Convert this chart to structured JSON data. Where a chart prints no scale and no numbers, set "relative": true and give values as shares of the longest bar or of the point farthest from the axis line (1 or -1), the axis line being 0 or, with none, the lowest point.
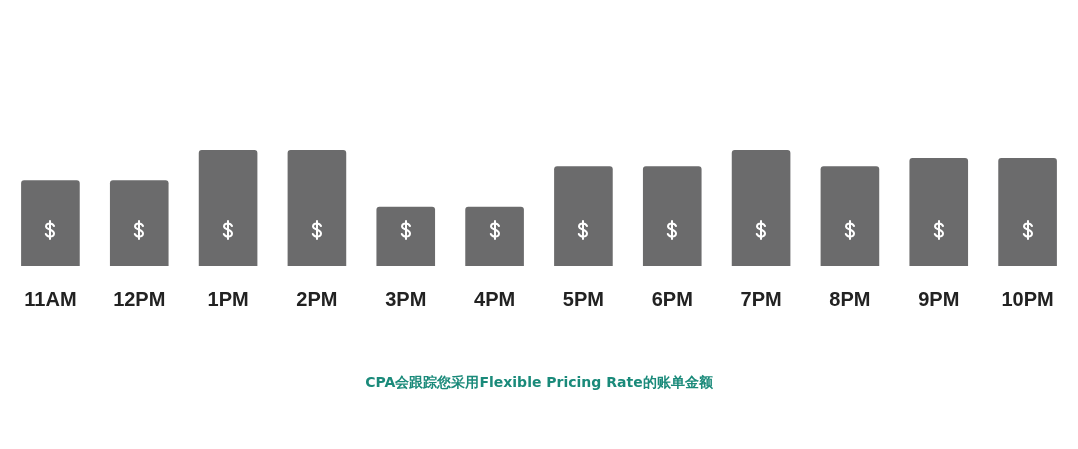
{
  "chart_data": {
    "type": "bar",
    "relative": true,
    "categories": [
      "11AM",
      "12PM",
      "1PM",
      "2PM",
      "3PM",
      "4PM",
      "5PM",
      "6PM",
      "7PM",
      "8PM",
      "9PM",
      "10PM"
    ],
    "values": [
      0.74,
      0.74,
      1,
      1,
      0.51,
      0.51,
      0.86,
      0.86,
      1,
      0.86,
      0.93,
      0.93
    ],
    "color": "#6b6b6c",
    "annotations": [
      "CPA会跟踪您采用Flexible Pricing Rate的账单金额"
    ]
  }
}
